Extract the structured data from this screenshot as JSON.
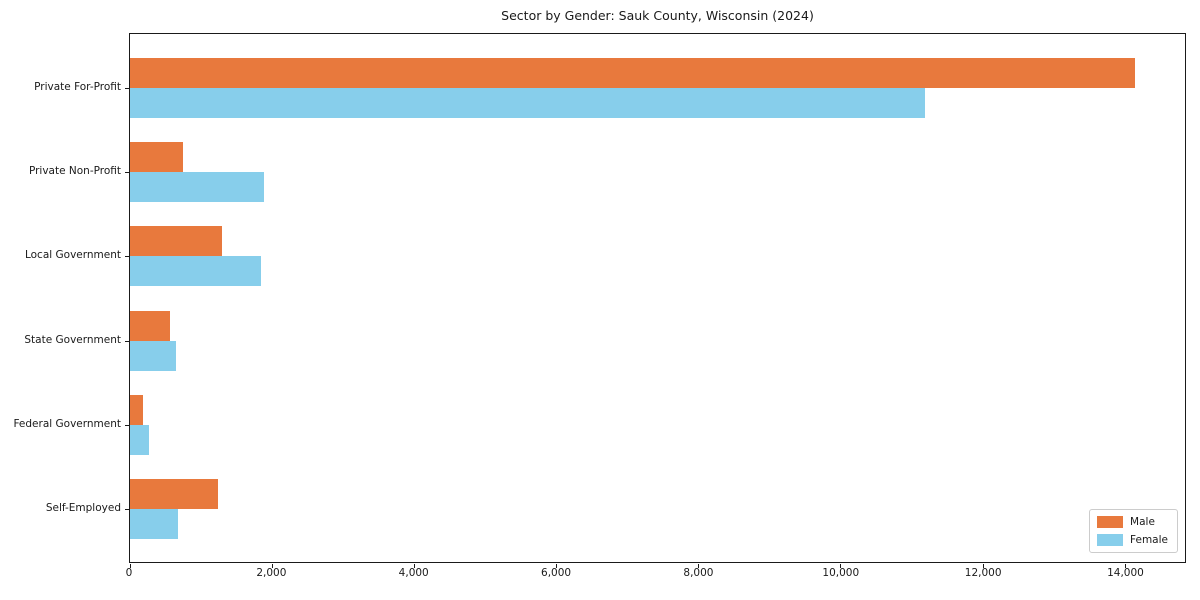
{
  "title": "Sector by Gender: Sauk County, Wisconsin (2024)",
  "chart_data": {
    "type": "bar",
    "orientation": "horizontal",
    "title": "Sector by Gender: Sauk County, Wisconsin (2024)",
    "xlabel": "",
    "ylabel": "",
    "categories": [
      "Private For-Profit",
      "Private Non-Profit",
      "Local Government",
      "State Government",
      "Federal Government",
      "Self-Employed"
    ],
    "series": [
      {
        "name": "Male",
        "color": "#e8793d",
        "values": [
          14140,
          745,
          1290,
          560,
          180,
          1235
        ]
      },
      {
        "name": "Female",
        "color": "#87ceeb",
        "values": [
          11190,
          1880,
          1840,
          645,
          265,
          675
        ]
      }
    ],
    "xlim": [
      0,
      14850
    ],
    "xticks": [
      0,
      2000,
      4000,
      6000,
      8000,
      10000,
      12000,
      14000
    ],
    "xtick_labels": [
      "0",
      "2,000",
      "4,000",
      "6,000",
      "8,000",
      "10,000",
      "12,000",
      "14,000"
    ],
    "grid": false,
    "legend": {
      "position": "lower right",
      "entries": [
        {
          "label": "Male",
          "color": "#e8793d"
        },
        {
          "label": "Female",
          "color": "#87ceeb"
        }
      ]
    }
  }
}
